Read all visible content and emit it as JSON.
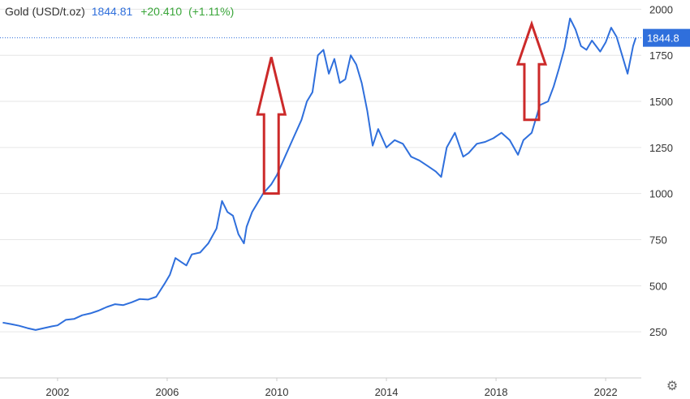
{
  "header": {
    "title": "Gold (USD/t.oz)",
    "price": "1844.81",
    "change": "+20.410",
    "change_pct": "(+1.11%)"
  },
  "price_tag": "1844.8",
  "settings_icon": "gear-icon",
  "colors": {
    "line": "#2f6fdc",
    "arrow": "#cc2a2a",
    "change_positive": "#3aa63a",
    "price_tag_bg": "#2f6fdc"
  },
  "chart_data": {
    "type": "line",
    "title": "",
    "xlabel": "",
    "ylabel": "",
    "xlim": [
      1999.9,
      2023.3
    ],
    "ylim": [
      0,
      2050
    ],
    "x_ticks": [
      2002,
      2006,
      2010,
      2014,
      2018,
      2022
    ],
    "y_ticks": [
      250,
      500,
      750,
      1000,
      1250,
      1500,
      1750,
      2000
    ],
    "current_value": 1844.81,
    "grid": "horizontal",
    "series": [
      {
        "name": "",
        "x": [
          2000.0,
          2000.3,
          2000.6,
          2000.9,
          2001.2,
          2001.5,
          2001.8,
          2002.0,
          2002.3,
          2002.6,
          2002.9,
          2003.2,
          2003.5,
          2003.8,
          2004.1,
          2004.4,
          2004.7,
          2005.0,
          2005.3,
          2005.6,
          2005.9,
          2006.1,
          2006.3,
          2006.5,
          2006.7,
          2006.9,
          2007.2,
          2007.5,
          2007.8,
          2008.0,
          2008.2,
          2008.4,
          2008.6,
          2008.8,
          2008.9,
          2009.1,
          2009.3,
          2009.5,
          2009.8,
          2010.0,
          2010.3,
          2010.6,
          2010.9,
          2011.1,
          2011.3,
          2011.5,
          2011.7,
          2011.9,
          2012.1,
          2012.3,
          2012.5,
          2012.7,
          2012.9,
          2013.1,
          2013.3,
          2013.5,
          2013.7,
          2014.0,
          2014.3,
          2014.6,
          2014.9,
          2015.2,
          2015.5,
          2015.8,
          2016.0,
          2016.2,
          2016.5,
          2016.8,
          2017.0,
          2017.3,
          2017.6,
          2017.9,
          2018.2,
          2018.5,
          2018.8,
          2019.0,
          2019.3,
          2019.6,
          2019.9,
          2020.1,
          2020.3,
          2020.5,
          2020.7,
          2020.9,
          2021.1,
          2021.3,
          2021.5,
          2021.8,
          2022.0,
          2022.2,
          2022.4,
          2022.6,
          2022.8,
          2023.0,
          2023.1
        ],
        "values": [
          300,
          292,
          283,
          270,
          260,
          270,
          280,
          285,
          315,
          320,
          340,
          350,
          365,
          385,
          400,
          395,
          410,
          428,
          425,
          440,
          510,
          560,
          650,
          630,
          610,
          670,
          680,
          730,
          810,
          960,
          900,
          880,
          780,
          730,
          820,
          900,
          950,
          1000,
          1050,
          1100,
          1200,
          1300,
          1400,
          1500,
          1550,
          1750,
          1780,
          1650,
          1730,
          1600,
          1620,
          1750,
          1700,
          1600,
          1450,
          1260,
          1350,
          1250,
          1290,
          1270,
          1200,
          1180,
          1150,
          1120,
          1090,
          1250,
          1330,
          1200,
          1220,
          1270,
          1280,
          1300,
          1330,
          1290,
          1210,
          1290,
          1330,
          1480,
          1500,
          1580,
          1680,
          1790,
          1950,
          1890,
          1800,
          1780,
          1830,
          1770,
          1820,
          1900,
          1850,
          1750,
          1650,
          1800,
          1844.81
        ]
      }
    ],
    "annotations": [
      {
        "type": "arrow-up",
        "x": 2009.8,
        "y_from": 1000,
        "y_to": 1740
      },
      {
        "type": "arrow-up",
        "x": 2019.3,
        "y_from": 1400,
        "y_to": 1920
      }
    ]
  }
}
